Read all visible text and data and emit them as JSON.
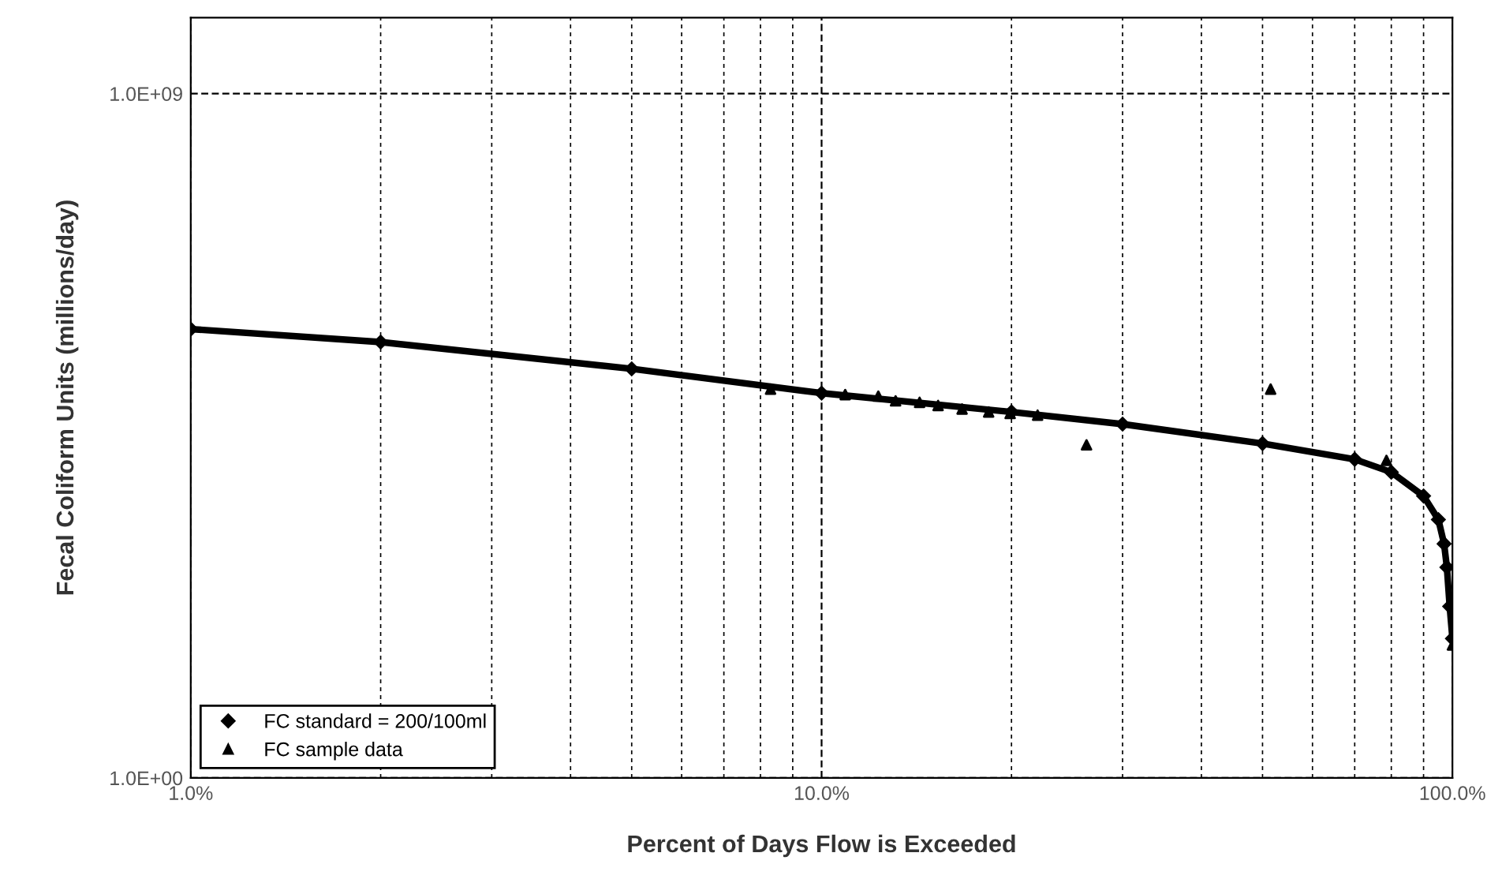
{
  "chart_data": {
    "type": "scatter",
    "xlabel": "Percent of Days Flow is Exceeded",
    "ylabel": "Fecal Coliform Units (millions/day)",
    "log": "xy",
    "xlim": [
      1,
      100
    ],
    "ylim": [
      1,
      10000000000
    ],
    "xticks": [
      {
        "value": 1,
        "label": "1.0%"
      },
      {
        "value": 10,
        "label": "10.0%"
      },
      {
        "value": 100,
        "label": "100.0%"
      }
    ],
    "yticks": [
      {
        "value": 1,
        "label": "1.0E+00"
      },
      {
        "value": 1000000000,
        "label": "1.0E+09"
      }
    ],
    "grid": true,
    "legend": "bottom left",
    "series": [
      {
        "name": "FC standard = 200/100ml",
        "type": "line",
        "color": "#000000",
        "marker": "diamond",
        "x": [
          1,
          2,
          5,
          10,
          20,
          30,
          50,
          70,
          80,
          90,
          95,
          97,
          98,
          99,
          100
        ],
        "values": [
          800000,
          540000,
          240000,
          115000,
          65000,
          45000,
          25000,
          15500,
          10500,
          5100,
          2500,
          1200,
          590,
          180,
          68
        ]
      },
      {
        "name": "FC sample data",
        "color": "#000000",
        "marker": "triangle",
        "x": [
          8.3,
          10.9,
          12.3,
          13.1,
          14.3,
          15.3,
          16.7,
          18.4,
          19.9,
          22.0,
          26.3,
          51.5,
          78.6,
          100
        ],
        "values": [
          130000,
          110000,
          105000,
          91000,
          87000,
          79000,
          71000,
          65000,
          62000,
          59000,
          24000,
          130000,
          15000,
          56
        ]
      }
    ]
  }
}
